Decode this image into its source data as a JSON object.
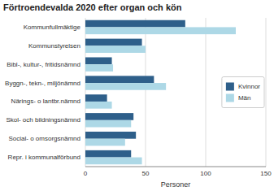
{
  "chart_data": {
    "type": "bar",
    "orientation": "horizontal",
    "title": "Förtroendevalda 2020 efter organ och kön",
    "categories": [
      "Kommunfullmäktige",
      "Kommunstyrelsen",
      "Bibl-, kultur-, fritidsnämnd",
      "Byggn-, tekn-, miljönämnd",
      "Närings- o lantbr.nämnd",
      "Skol- och bildningsnämnd",
      "Social- o omsorgsnämnd",
      "Repr. i kommunalförbund"
    ],
    "series": [
      {
        "name": "Kvinnor",
        "color": "#2E5F8A",
        "values": [
          83,
          47,
          22,
          57,
          18,
          40,
          42,
          38
        ]
      },
      {
        "name": "Män",
        "color": "#ADD8E6",
        "values": [
          125,
          50,
          23,
          67,
          22,
          38,
          33,
          47
        ]
      }
    ],
    "xlabel": "Personer",
    "xlim": [
      0,
      150
    ],
    "xticks": [
      0,
      50,
      100,
      150
    ],
    "grid": true,
    "legend": "right"
  }
}
